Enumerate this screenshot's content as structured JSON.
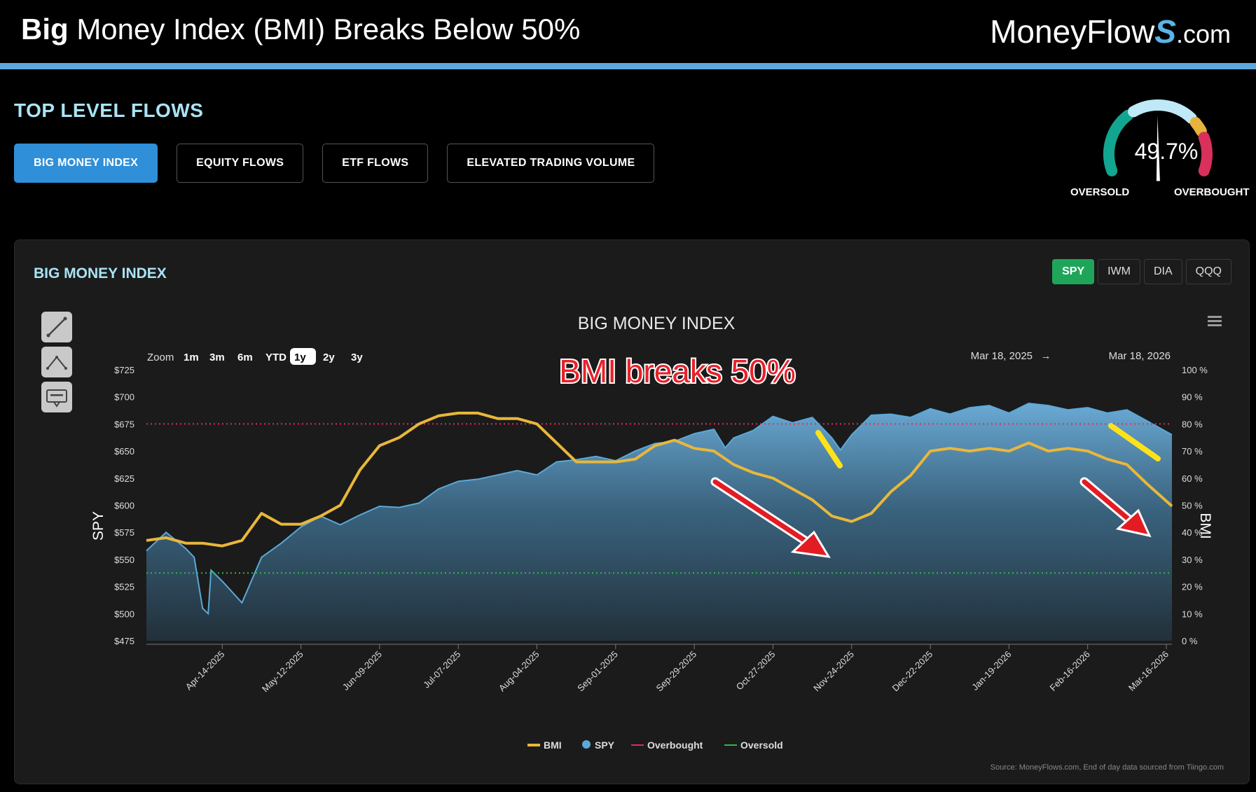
{
  "header": {
    "title_bold": "Big",
    "title_rest": " Money Index (BMI) Breaks Below 50%",
    "brand_main": "MoneyFlow",
    "brand_s": "S",
    "brand_tld": ".com"
  },
  "section": {
    "title": "TOP LEVEL FLOWS",
    "tabs": [
      {
        "label": "BIG MONEY INDEX",
        "active": true
      },
      {
        "label": "EQUITY FLOWS",
        "active": false
      },
      {
        "label": "ETF FLOWS",
        "active": false
      },
      {
        "label": "ELEVATED TRADING VOLUME",
        "active": false
      }
    ]
  },
  "gauge": {
    "value_text": "49.7%",
    "value": 49.7,
    "oversold_label": "OVERSOLD",
    "overbought_label": "OVERBOUGHT",
    "colors": {
      "low": "#12a58f",
      "mid": "#bfe9f7",
      "warm": "#e6b43c",
      "high": "#d9305c"
    }
  },
  "panel": {
    "title": "BIG MONEY INDEX",
    "tickers": [
      {
        "label": "SPY",
        "active": true
      },
      {
        "label": "IWM",
        "active": false
      },
      {
        "label": "DIA",
        "active": false
      },
      {
        "label": "QQQ",
        "active": false
      }
    ],
    "tools": [
      "line-tool-icon",
      "measure-ab-tool-icon",
      "text-annotation-tool-icon"
    ]
  },
  "chart_data": {
    "type": "line",
    "title": "BIG MONEY INDEX",
    "zoom_label": "Zoom",
    "zoom_options": [
      "1m",
      "3m",
      "6m",
      "YTD",
      "1y",
      "2y",
      "3y"
    ],
    "zoom_selected": "1y",
    "date_range_from": "Mar 18, 2025",
    "date_range_arrow": "→",
    "date_range_to": "Mar 18, 2026",
    "annotation": "BMI breaks 50%",
    "source": "Source: MoneyFlows.com, End of day data sourced from Tiingo.com",
    "y_left_label": "SPY",
    "y_right_label": "BMI",
    "y_left_ticks": [
      "$725",
      "$700",
      "$675",
      "$650",
      "$625",
      "$600",
      "$575",
      "$550",
      "$525",
      "$500",
      "$475"
    ],
    "y_right_ticks": [
      "100 %",
      "90 %",
      "80 %",
      "70 %",
      "60 %",
      "50 %",
      "40 %",
      "30 %",
      "20 %",
      "10 %",
      "0 %"
    ],
    "ylim_left": [
      475,
      725
    ],
    "ylim_right": [
      0,
      100
    ],
    "x_range": [
      "2025-03-18",
      "2026-03-18"
    ],
    "x_ticks": [
      "Apr-14-2025",
      "May-12-2025",
      "Jun-09-2025",
      "Jul-07-2025",
      "Aug-04-2025",
      "Sep-01-2025",
      "Sep-29-2025",
      "Oct-27-2025",
      "Nov-24-2025",
      "Dec-22-2025",
      "Jan-19-2026",
      "Feb-16-2026",
      "Mar-16-2026"
    ],
    "overbought_level": 80,
    "oversold_level": 25,
    "legend": [
      {
        "name": "BMI",
        "color": "#e8b73b",
        "marker": "line"
      },
      {
        "name": "SPY",
        "color": "#5aa8d8",
        "marker": "dot"
      },
      {
        "name": "Overbought",
        "color": "#d9305c",
        "marker": "line"
      },
      {
        "name": "Oversold",
        "color": "#2fb84a",
        "marker": "line"
      }
    ],
    "series": [
      {
        "name": "SPY",
        "axis": "left",
        "type": "area",
        "color": "#5aa8d8",
        "points": [
          [
            "2025-03-18",
            558
          ],
          [
            "2025-03-25",
            575
          ],
          [
            "2025-04-01",
            560
          ],
          [
            "2025-04-04",
            552
          ],
          [
            "2025-04-07",
            505
          ],
          [
            "2025-04-09",
            500
          ],
          [
            "2025-04-10",
            540
          ],
          [
            "2025-04-14",
            530
          ],
          [
            "2025-04-21",
            510
          ],
          [
            "2025-04-28",
            552
          ],
          [
            "2025-05-05",
            565
          ],
          [
            "2025-05-12",
            580
          ],
          [
            "2025-05-19",
            590
          ],
          [
            "2025-05-26",
            582
          ],
          [
            "2025-06-02",
            591
          ],
          [
            "2025-06-09",
            599
          ],
          [
            "2025-06-16",
            598
          ],
          [
            "2025-06-23",
            602
          ],
          [
            "2025-06-30",
            615
          ],
          [
            "2025-07-07",
            622
          ],
          [
            "2025-07-14",
            624
          ],
          [
            "2025-07-21",
            628
          ],
          [
            "2025-07-28",
            632
          ],
          [
            "2025-08-04",
            628
          ],
          [
            "2025-08-11",
            640
          ],
          [
            "2025-08-18",
            642
          ],
          [
            "2025-08-25",
            645
          ],
          [
            "2025-09-01",
            641
          ],
          [
            "2025-09-08",
            650
          ],
          [
            "2025-09-15",
            657
          ],
          [
            "2025-09-22",
            659
          ],
          [
            "2025-09-29",
            666
          ],
          [
            "2025-10-06",
            670
          ],
          [
            "2025-10-10",
            653
          ],
          [
            "2025-10-13",
            662
          ],
          [
            "2025-10-20",
            669
          ],
          [
            "2025-10-27",
            682
          ],
          [
            "2025-11-03",
            676
          ],
          [
            "2025-11-10",
            681
          ],
          [
            "2025-11-17",
            662
          ],
          [
            "2025-11-20",
            651
          ],
          [
            "2025-11-24",
            665
          ],
          [
            "2025-12-01",
            683
          ],
          [
            "2025-12-08",
            684
          ],
          [
            "2025-12-15",
            681
          ],
          [
            "2025-12-22",
            689
          ],
          [
            "2025-12-29",
            684
          ],
          [
            "2026-01-05",
            690
          ],
          [
            "2026-01-12",
            692
          ],
          [
            "2026-01-19",
            685
          ],
          [
            "2026-01-26",
            694
          ],
          [
            "2026-02-02",
            692
          ],
          [
            "2026-02-09",
            688
          ],
          [
            "2026-02-16",
            690
          ],
          [
            "2026-02-23",
            685
          ],
          [
            "2026-03-02",
            688
          ],
          [
            "2026-03-09",
            678
          ],
          [
            "2026-03-18",
            665
          ]
        ]
      },
      {
        "name": "BMI",
        "axis": "right",
        "type": "line",
        "color": "#e8b73b",
        "points": [
          [
            "2025-03-18",
            37
          ],
          [
            "2025-03-25",
            38
          ],
          [
            "2025-04-01",
            36
          ],
          [
            "2025-04-07",
            36
          ],
          [
            "2025-04-14",
            35
          ],
          [
            "2025-04-21",
            37
          ],
          [
            "2025-04-28",
            47
          ],
          [
            "2025-05-05",
            43
          ],
          [
            "2025-05-12",
            43
          ],
          [
            "2025-05-19",
            46
          ],
          [
            "2025-05-26",
            50
          ],
          [
            "2025-06-02",
            63
          ],
          [
            "2025-06-09",
            72
          ],
          [
            "2025-06-16",
            75
          ],
          [
            "2025-06-23",
            80
          ],
          [
            "2025-06-30",
            83
          ],
          [
            "2025-07-07",
            84
          ],
          [
            "2025-07-14",
            84
          ],
          [
            "2025-07-21",
            82
          ],
          [
            "2025-07-28",
            82
          ],
          [
            "2025-08-04",
            80
          ],
          [
            "2025-08-11",
            73
          ],
          [
            "2025-08-18",
            66
          ],
          [
            "2025-08-25",
            66
          ],
          [
            "2025-09-01",
            66
          ],
          [
            "2025-09-08",
            67
          ],
          [
            "2025-09-15",
            72
          ],
          [
            "2025-09-22",
            74
          ],
          [
            "2025-09-29",
            71
          ],
          [
            "2025-10-06",
            70
          ],
          [
            "2025-10-13",
            65
          ],
          [
            "2025-10-20",
            62
          ],
          [
            "2025-10-27",
            60
          ],
          [
            "2025-11-03",
            56
          ],
          [
            "2025-11-10",
            52
          ],
          [
            "2025-11-17",
            46
          ],
          [
            "2025-11-24",
            44
          ],
          [
            "2025-12-01",
            47
          ],
          [
            "2025-12-08",
            55
          ],
          [
            "2025-12-15",
            61
          ],
          [
            "2025-12-22",
            70
          ],
          [
            "2025-12-29",
            71
          ],
          [
            "2026-01-05",
            70
          ],
          [
            "2026-01-12",
            71
          ],
          [
            "2026-01-19",
            70
          ],
          [
            "2026-01-26",
            73
          ],
          [
            "2026-02-02",
            70
          ],
          [
            "2026-02-09",
            71
          ],
          [
            "2026-02-16",
            70
          ],
          [
            "2026-02-23",
            67
          ],
          [
            "2026-03-02",
            65
          ],
          [
            "2026-03-09",
            58
          ],
          [
            "2026-03-18",
            49.7
          ]
        ]
      }
    ]
  }
}
